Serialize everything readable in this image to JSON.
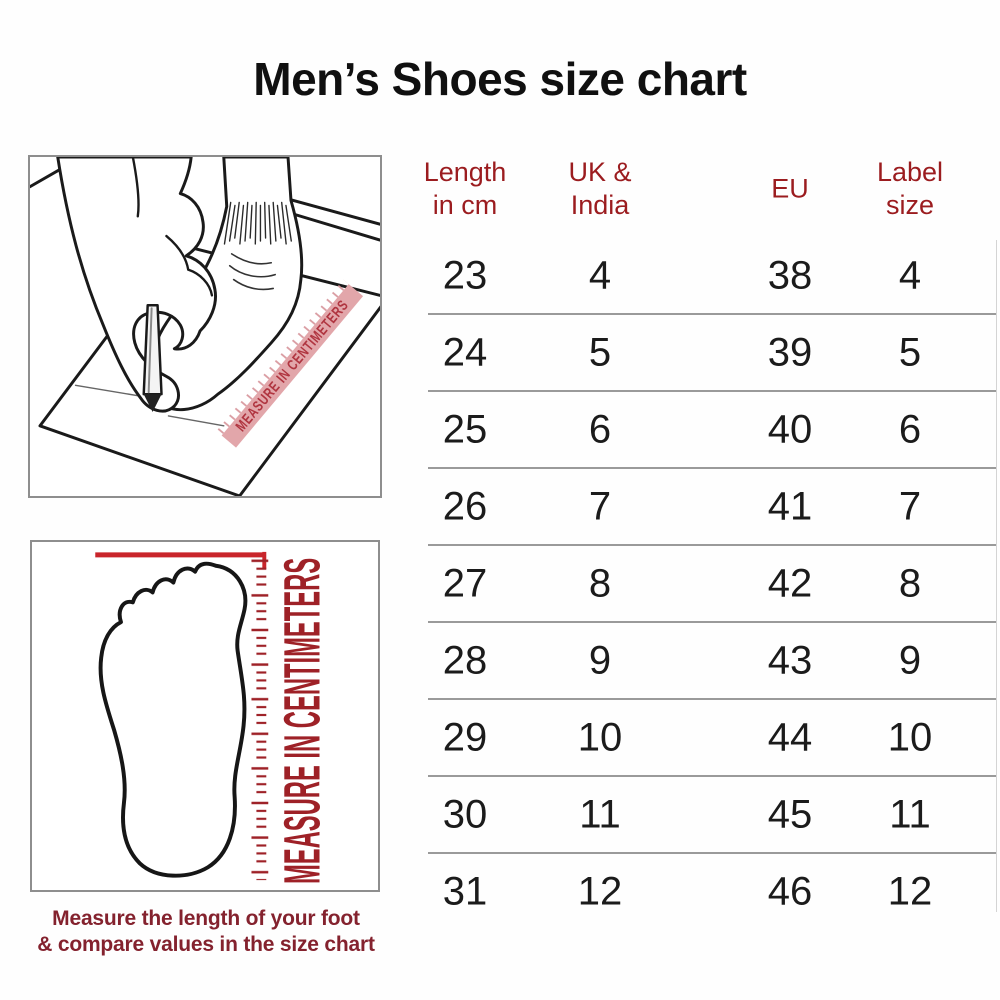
{
  "title": "Men’s Shoes size chart",
  "colors": {
    "accent_red": "#9b1c1f",
    "maroon": "#84222e",
    "ruler_red": "#9e2127",
    "bright_red": "#c9252b",
    "ruler_pink": "#e2a6aa",
    "divider": "#9a9a9a",
    "box_border": "#8e8e8e",
    "ink": "#1a1a1a"
  },
  "chart_data": {
    "type": "table",
    "columns": [
      "Length in cm",
      "UK & India",
      "EU",
      "Label size"
    ],
    "header_lines": [
      [
        "Length",
        "in cm"
      ],
      [
        "UK &",
        "India"
      ],
      [
        "EU"
      ],
      [
        "Label",
        "size"
      ]
    ],
    "rows": [
      [
        "23",
        "4",
        "38",
        "4"
      ],
      [
        "24",
        "5",
        "39",
        "5"
      ],
      [
        "25",
        "6",
        "40",
        "6"
      ],
      [
        "26",
        "7",
        "41",
        "7"
      ],
      [
        "27",
        "8",
        "42",
        "8"
      ],
      [
        "28",
        "9",
        "43",
        "9"
      ],
      [
        "29",
        "10",
        "44",
        "10"
      ],
      [
        "30",
        "11",
        "45",
        "11"
      ],
      [
        "31",
        "12",
        "46",
        "12"
      ]
    ]
  },
  "left_panel": {
    "top_illustration": {
      "ruler_label": "MEASURE IN CENTIMETERS"
    },
    "bottom_illustration": {
      "ruler_label": "MEASURE IN CENTIMETERS"
    },
    "caption_line1": "Measure the length of your foot",
    "caption_line2": "& compare values in the size chart"
  }
}
